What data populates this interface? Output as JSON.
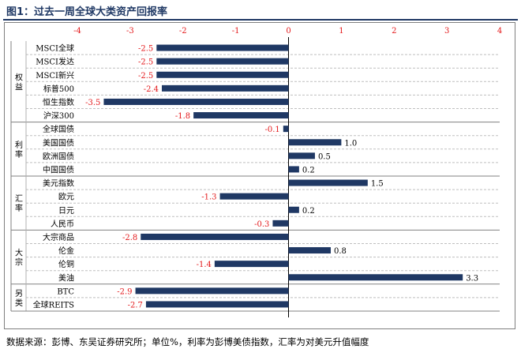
{
  "figure": {
    "title": "图1：过去一周全球大类资产回报率",
    "source": "数据来源：彭博、东吴证券研究所；单位%，利率为彭博美债指数，汇率为对美元升值幅度"
  },
  "colors": {
    "bar": "#1f3864",
    "negative_label": "#e41a1c",
    "positive_label": "#000000",
    "axis": "#e41a1c",
    "grid": "#bfbfbf"
  },
  "chart_data": {
    "type": "bar",
    "orientation": "horizontal",
    "xlim": [
      -4,
      4
    ],
    "xticks": [
      -4,
      -3,
      -2,
      -1,
      0,
      1,
      2,
      3,
      4
    ],
    "grid": true,
    "groups": [
      {
        "name": "权益",
        "items": [
          "MSCI全球",
          "MSCI发达",
          "MSCI新兴",
          "标普500",
          "恒生指数",
          "沪深300"
        ]
      },
      {
        "name": "利率",
        "items": [
          "全球国债",
          "美国国债",
          "欧洲国债",
          "中国国债"
        ]
      },
      {
        "name": "汇率",
        "items": [
          "美元指数",
          "欧元",
          "日元",
          "人民币"
        ]
      },
      {
        "name": "大宗",
        "items": [
          "大宗商品",
          "伦金",
          "伦铜",
          "美油"
        ]
      },
      {
        "name": "另类",
        "items": [
          "BTC",
          "全球REITS"
        ]
      }
    ],
    "categories": [
      "MSCI全球",
      "MSCI发达",
      "MSCI新兴",
      "标普500",
      "恒生指数",
      "沪深300",
      "全球国债",
      "美国国债",
      "欧洲国债",
      "中国国债",
      "美元指数",
      "欧元",
      "日元",
      "人民币",
      "大宗商品",
      "伦金",
      "伦铜",
      "美油",
      "BTC",
      "全球REITS"
    ],
    "values": [
      -2.5,
      -2.5,
      -2.5,
      -2.4,
      -3.5,
      -1.8,
      -0.1,
      1.0,
      0.5,
      0.2,
      1.5,
      -1.3,
      0.2,
      -0.3,
      -2.8,
      0.8,
      -1.4,
      3.3,
      -2.9,
      -2.7
    ]
  }
}
